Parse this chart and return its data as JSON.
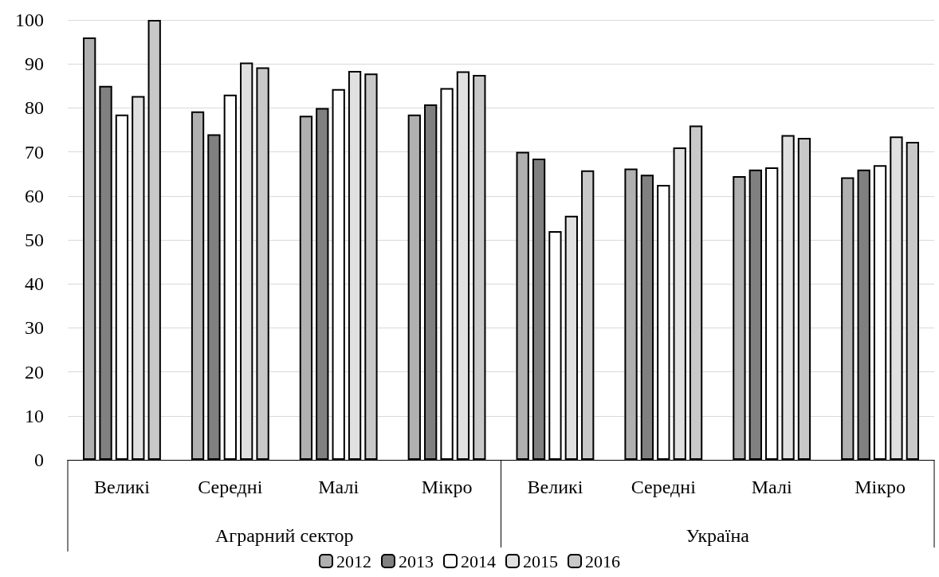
{
  "chart_data": {
    "type": "bar",
    "categories": [
      "Великі",
      "Середні",
      "Малі",
      "Мікро",
      "Великі",
      "Середні",
      "Малі",
      "Мікро"
    ],
    "series": [
      {
        "name": "2012",
        "color": "#b0b0b0",
        "values": [
          96,
          79.2,
          78.2,
          78.5,
          70,
          66.2,
          64.5,
          64.2
        ]
      },
      {
        "name": "2013",
        "color": "#808080",
        "values": [
          85,
          74,
          80,
          80.8,
          68.5,
          64.8,
          66,
          66
        ]
      },
      {
        "name": "2014",
        "color": "#ffffff",
        "values": [
          78.5,
          83,
          84.3,
          84.5,
          52,
          62.5,
          66.5,
          67
        ]
      },
      {
        "name": "2015",
        "color": "#e0e0e0",
        "values": [
          82.7,
          90.3,
          88.4,
          88.3,
          55.5,
          71,
          73.8,
          73.5
        ]
      },
      {
        "name": "2016",
        "color": "#c8c8c8",
        "values": [
          100,
          89.2,
          87.8,
          87.5,
          65.8,
          76,
          73.2,
          72.3
        ]
      }
    ],
    "annotations": [
      "Аграрний сектор",
      "Україна"
    ],
    "ylim": [
      0,
      100
    ],
    "yticks": [
      0,
      10,
      20,
      30,
      40,
      50,
      60,
      70,
      80,
      90,
      100
    ],
    "grid": "y",
    "legend": "bottom"
  }
}
